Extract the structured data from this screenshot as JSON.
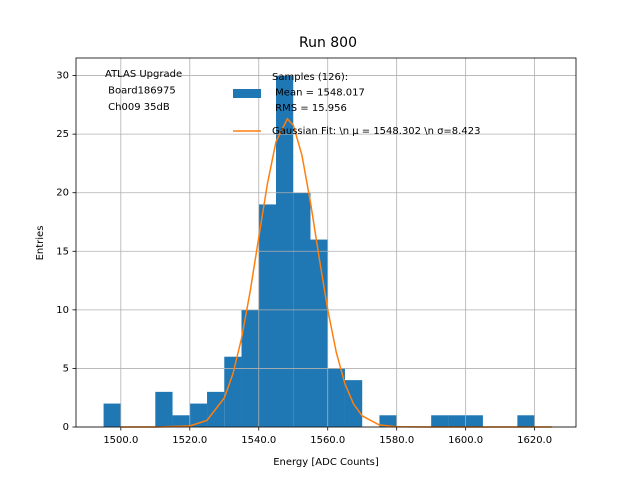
{
  "chart_data": {
    "type": "histogram",
    "title": "Run 800",
    "xlabel": "Energy [ADC Counts]",
    "ylabel": "Entries",
    "annotation": [
      "ATLAS Upgrade",
      " Board186975",
      " Ch009 35dB"
    ],
    "name": "Samples (126):\n Mean = 1548.017\n RMS = 15.956",
    "color": "#1f77b4",
    "bins": [
      1495,
      1500,
      1505,
      1510,
      1515,
      1520,
      1525,
      1530,
      1535,
      1540,
      1545,
      1550,
      1555,
      1560,
      1565,
      1570,
      1575,
      1580,
      1585,
      1590,
      1595,
      1600,
      1605,
      1610,
      1615,
      1620
    ],
    "counts": [
      2,
      0,
      0,
      3,
      1,
      2,
      3,
      6,
      10,
      19,
      30,
      20,
      16,
      5,
      4,
      0,
      1,
      0,
      0,
      1,
      1,
      1,
      0,
      0,
      1
    ],
    "fit": {
      "type": "line",
      "name": "Gaussian Fit: \\n μ = 1548.302 \\n σ=8.423",
      "color": "#ff7f0e",
      "x": [
        1500,
        1510,
        1520,
        1525,
        1530,
        1532.5,
        1535,
        1537.5,
        1540,
        1542.5,
        1545,
        1548.3,
        1550,
        1552.5,
        1555,
        1557.5,
        1560,
        1562.5,
        1565,
        1567.5,
        1570,
        1575,
        1580,
        1590,
        1600,
        1610,
        1625
      ],
      "values": [
        0,
        0,
        0.09,
        0.57,
        2.48,
        4.53,
        7.56,
        11.56,
        16.18,
        20.75,
        24.36,
        26.3,
        25.77,
        23.23,
        19.17,
        14.49,
        10.02,
        6.35,
        3.68,
        1.96,
        0.95,
        0.17,
        0.02,
        0,
        0,
        0,
        0
      ]
    },
    "xlim": [
      1487,
      1632
    ],
    "ylim": [
      0,
      31.5
    ],
    "xticks": [
      {
        "value": 1500,
        "label": "1500.0"
      },
      {
        "value": 1520,
        "label": "1520.0"
      },
      {
        "value": 1540,
        "label": "1540.0"
      },
      {
        "value": 1560,
        "label": "1560.0"
      },
      {
        "value": 1580,
        "label": "1580.0"
      },
      {
        "value": 1600,
        "label": "1600.0"
      },
      {
        "value": 1620,
        "label": "1620.0"
      }
    ],
    "yticks": [
      0,
      5,
      10,
      15,
      20,
      25,
      30
    ],
    "grid": true
  }
}
